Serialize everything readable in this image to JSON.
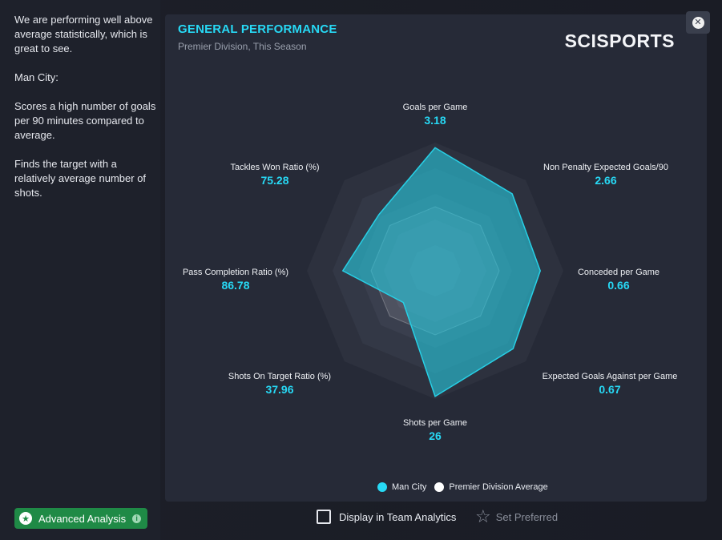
{
  "sidebar": {
    "insights": [
      "We are performing well above average statistically, which is great to see.",
      "Man City:",
      "Scores a high number of goals per 90 minutes compared to average.",
      "Finds the target with a relatively average number of shots."
    ],
    "advanced_button": "Advanced Analysis"
  },
  "panel": {
    "title": "GENERAL PERFORMANCE",
    "subtitle": "Premier Division, This Season",
    "brand": "SCISPORTS"
  },
  "chart_data": {
    "type": "radar",
    "axes": [
      {
        "label": "Goals per Game",
        "value": "3.18"
      },
      {
        "label": "Non Penalty Expected Goals/90",
        "value": "2.66"
      },
      {
        "label": "Conceded per Game",
        "value": "0.66"
      },
      {
        "label": "Expected Goals Against per Game",
        "value": "0.67"
      },
      {
        "label": "Shots per Game",
        "value": "26"
      },
      {
        "label": "Shots On Target Ratio (%)",
        "value": "37.96"
      },
      {
        "label": "Pass Completion Ratio (%)",
        "value": "86.78"
      },
      {
        "label": "Tackles Won Ratio (%)",
        "value": "75.28"
      }
    ],
    "series": [
      {
        "name": "Man City",
        "color": "#27c6db",
        "scores": [
          0.96,
          0.85,
          0.82,
          0.86,
          0.98,
          0.35,
          0.72,
          0.62
        ]
      },
      {
        "name": "Premier Division Average",
        "color": "#ffffff",
        "scores": [
          0.5,
          0.5,
          0.5,
          0.5,
          0.5,
          0.5,
          0.5,
          0.5
        ]
      }
    ]
  },
  "footer": {
    "display_team_analytics": "Display in Team Analytics",
    "set_preferred": "Set Preferred"
  },
  "colors": {
    "accent": "#27d9f5",
    "button_green": "#1f8a46"
  },
  "icons": {
    "close": "close-icon",
    "advanced_star": "star-badge-icon",
    "info": "info-icon",
    "preferred": "star-outline-icon"
  }
}
